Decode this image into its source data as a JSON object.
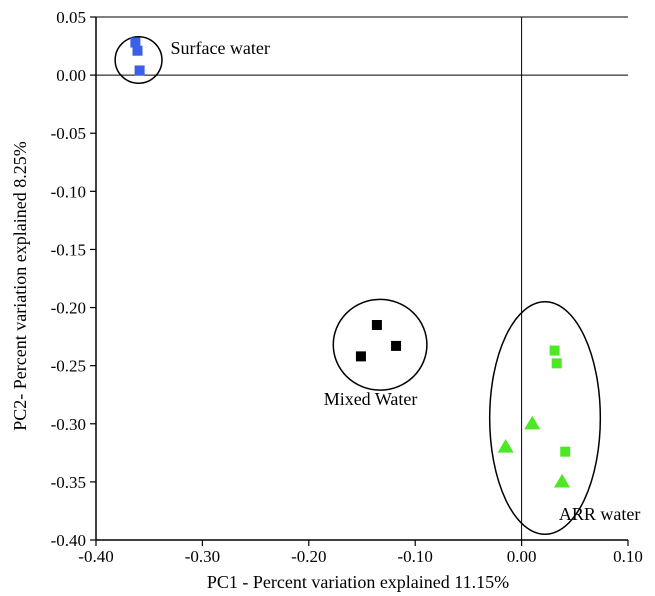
{
  "chart_data": {
    "type": "scatter",
    "xlabel": "PC1 - Percent variation explained 11.15%",
    "ylabel": "PC2- Percent variation explained 8.25%",
    "xlim": [
      -0.4,
      -0.1
    ],
    "ylim": [
      -0.4,
      0.05
    ],
    "x_ticks": [
      "-0.40",
      "-0.30",
      "-0.20",
      "-0.10",
      "0.00",
      "0.10"
    ],
    "x_tick_values": [
      -0.4,
      -0.3,
      -0.2,
      -0.1,
      0.0,
      0.1
    ],
    "y_ticks": [
      "0.05",
      "0.00",
      "-0.05",
      "-0.10",
      "-0.15",
      "-0.20",
      "-0.25",
      "-0.30",
      "-0.35",
      "-0.40"
    ],
    "y_tick_values": [
      0.05,
      0.0,
      -0.05,
      -0.1,
      -0.15,
      -0.2,
      -0.25,
      -0.3,
      -0.35,
      -0.4
    ],
    "reference_lines": {
      "x": 0.0,
      "y": 0.0
    },
    "grid": false,
    "series": [
      {
        "marker": "square",
        "color": "#3a5fe8",
        "points": [
          [
            -0.363,
            0.028
          ],
          [
            -0.361,
            0.021
          ],
          [
            -0.359,
            0.004
          ]
        ]
      },
      {
        "marker": "square",
        "color": "#000000",
        "points": [
          [
            -0.136,
            -0.215
          ],
          [
            -0.118,
            -0.233
          ],
          [
            -0.151,
            -0.242
          ]
        ]
      },
      {
        "marker": "square",
        "color": "#4ce824",
        "points": [
          [
            0.031,
            -0.237
          ],
          [
            0.033,
            -0.248
          ],
          [
            0.041,
            -0.324
          ]
        ]
      },
      {
        "marker": "triangle",
        "color": "#4ce824",
        "points": [
          [
            0.01,
            -0.3
          ],
          [
            -0.015,
            -0.32
          ],
          [
            0.038,
            -0.35
          ]
        ]
      }
    ],
    "group_annotations": [
      {
        "label": "Surface water",
        "center": [
          -0.36,
          0.013
        ],
        "radius": [
          0.022,
          0.02
        ],
        "label_anchor": [
          -0.33,
          0.018
        ]
      },
      {
        "label": "Mixed Water",
        "center": [
          -0.133,
          -0.232
        ],
        "radius": [
          0.044,
          0.039
        ],
        "label_anchor": [
          -0.186,
          -0.284
        ]
      },
      {
        "label": "ARR water",
        "center": [
          0.022,
          -0.295
        ],
        "radius": [
          0.052,
          0.1
        ],
        "label_anchor": [
          0.035,
          -0.383
        ]
      }
    ]
  }
}
